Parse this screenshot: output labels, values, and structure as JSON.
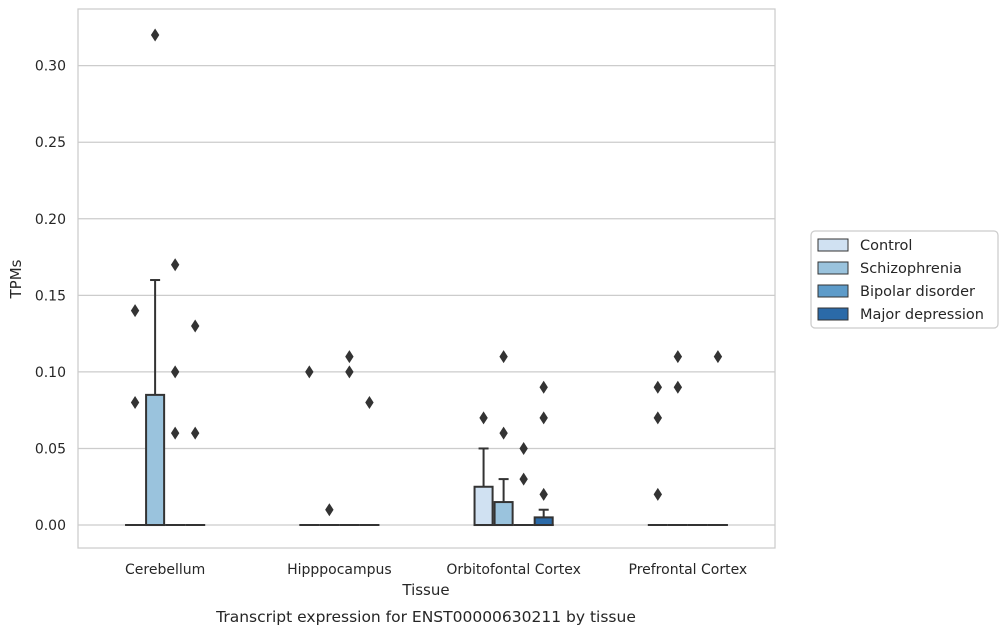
{
  "chart_data": {
    "type": "boxplot",
    "caption": "Transcript expression for ENST00000630211 by tissue",
    "xlabel": "Tissue",
    "ylabel": "TPMs",
    "ylim": [
      -0.015,
      0.337
    ],
    "yticks": [
      0.0,
      0.05,
      0.1,
      0.15,
      0.2,
      0.25,
      0.3
    ],
    "ytick_labels": [
      "0.00",
      "0.05",
      "0.10",
      "0.15",
      "0.20",
      "0.25",
      "0.30"
    ],
    "grid": true,
    "legend_position": "right-center",
    "categories": [
      "Cerebellum",
      "Hipppocampus",
      "Orbitofontal Cortex",
      "Prefrontal Cortex"
    ],
    "series": [
      {
        "name": "Control",
        "color": "#d0e1f2",
        "boxes": [
          {
            "q1": 0,
            "median": 0,
            "q3": 0,
            "whisker_low": 0,
            "whisker_high": 0,
            "outliers": [
              0.08,
              0.14
            ]
          },
          {
            "q1": 0,
            "median": 0,
            "q3": 0,
            "whisker_low": 0,
            "whisker_high": 0,
            "outliers": [
              0.1
            ]
          },
          {
            "q1": 0,
            "median": 0,
            "q3": 0.025,
            "whisker_low": 0,
            "whisker_high": 0.05,
            "outliers": [
              0.07
            ]
          },
          {
            "q1": 0,
            "median": 0,
            "q3": 0,
            "whisker_low": 0,
            "whisker_high": 0,
            "outliers": [
              0.02,
              0.07,
              0.09
            ]
          }
        ]
      },
      {
        "name": "Schizophrenia",
        "color": "#9ac3dd",
        "boxes": [
          {
            "q1": 0,
            "median": 0,
            "q3": 0.085,
            "whisker_low": 0,
            "whisker_high": 0.16,
            "outliers": [
              0.32
            ]
          },
          {
            "q1": 0,
            "median": 0,
            "q3": 0,
            "whisker_low": 0,
            "whisker_high": 0,
            "outliers": [
              0.01
            ]
          },
          {
            "q1": 0,
            "median": 0,
            "q3": 0.015,
            "whisker_low": 0,
            "whisker_high": 0.03,
            "outliers": [
              0.06,
              0.11
            ]
          },
          {
            "q1": 0,
            "median": 0,
            "q3": 0,
            "whisker_low": 0,
            "whisker_high": 0,
            "outliers": [
              0.09,
              0.11
            ]
          }
        ]
      },
      {
        "name": "Bipolar disorder",
        "color": "#5d9bc9",
        "boxes": [
          {
            "q1": 0,
            "median": 0,
            "q3": 0,
            "whisker_low": 0,
            "whisker_high": 0,
            "outliers": [
              0.06,
              0.1,
              0.17
            ]
          },
          {
            "q1": 0,
            "median": 0,
            "q3": 0,
            "whisker_low": 0,
            "whisker_high": 0,
            "outliers": [
              0.1,
              0.11
            ]
          },
          {
            "q1": 0,
            "median": 0,
            "q3": 0,
            "whisker_low": 0,
            "whisker_high": 0,
            "outliers": [
              0.03,
              0.05
            ]
          },
          {
            "q1": 0,
            "median": 0,
            "q3": 0,
            "whisker_low": 0,
            "whisker_high": 0,
            "outliers": []
          }
        ]
      },
      {
        "name": "Major depression",
        "color": "#2b6aa8",
        "boxes": [
          {
            "q1": 0,
            "median": 0,
            "q3": 0,
            "whisker_low": 0,
            "whisker_high": 0,
            "outliers": [
              0.06,
              0.13
            ]
          },
          {
            "q1": 0,
            "median": 0,
            "q3": 0,
            "whisker_low": 0,
            "whisker_high": 0,
            "outliers": [
              0.08
            ]
          },
          {
            "q1": 0,
            "median": 0,
            "q3": 0.005,
            "whisker_low": 0,
            "whisker_high": 0.01,
            "outliers": [
              0.02,
              0.07,
              0.09
            ]
          },
          {
            "q1": 0,
            "median": 0,
            "q3": 0,
            "whisker_low": 0,
            "whisker_high": 0,
            "outliers": [
              0.11
            ]
          }
        ]
      }
    ],
    "style": {
      "line_color": "#333333",
      "grid_color": "#cccccc",
      "frame_color": "#cccccc",
      "text_color": "#262626"
    }
  }
}
